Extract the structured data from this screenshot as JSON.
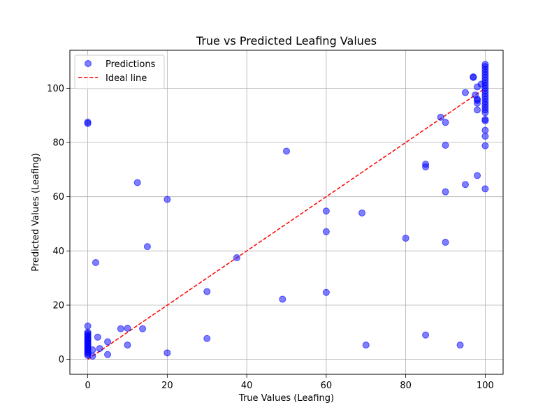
{
  "chart_data": {
    "type": "scatter",
    "title": "True vs Predicted Leafing Values",
    "xlabel": "True Values (Leafing)",
    "ylabel": "Predicted Values (Leafing)",
    "xlim": [
      -4.5,
      104.5
    ],
    "ylim": [
      -5.5,
      114
    ],
    "xticks": [
      0,
      20,
      40,
      60,
      80,
      100
    ],
    "yticks": [
      0,
      20,
      40,
      60,
      80,
      100
    ],
    "grid": true,
    "legend_position": "top-left",
    "series": [
      {
        "name": "Predictions",
        "color": "#0000ff",
        "points": [
          [
            0,
            87.5
          ],
          [
            0,
            87
          ],
          [
            0,
            12.3
          ],
          [
            0,
            10
          ],
          [
            0,
            9.5
          ],
          [
            0,
            9
          ],
          [
            0,
            8.5
          ],
          [
            0,
            8
          ],
          [
            0,
            7.5
          ],
          [
            0,
            7
          ],
          [
            0,
            6.5
          ],
          [
            0,
            6
          ],
          [
            0,
            5.5
          ],
          [
            0,
            5
          ],
          [
            0,
            4.5
          ],
          [
            0,
            4
          ],
          [
            0,
            3.5
          ],
          [
            0,
            3
          ],
          [
            0,
            2.5
          ],
          [
            0,
            2
          ],
          [
            0,
            1.5
          ],
          [
            1.2,
            3.5
          ],
          [
            1.2,
            1.2
          ],
          [
            2,
            35.7
          ],
          [
            2.5,
            8.2
          ],
          [
            3,
            4
          ],
          [
            5,
            6.5
          ],
          [
            5,
            1.8
          ],
          [
            8.3,
            11.3
          ],
          [
            10,
            11.5
          ],
          [
            10,
            5.3
          ],
          [
            12.5,
            65.2
          ],
          [
            13.8,
            11.3
          ],
          [
            15,
            41.6
          ],
          [
            20,
            59
          ],
          [
            20,
            2.4
          ],
          [
            30,
            25
          ],
          [
            30,
            7.7
          ],
          [
            37.5,
            37.5
          ],
          [
            49,
            22.2
          ],
          [
            50,
            76.8
          ],
          [
            60,
            54.7
          ],
          [
            60,
            47.1
          ],
          [
            60,
            24.7
          ],
          [
            69,
            54
          ],
          [
            70,
            5.3
          ],
          [
            80,
            44.7
          ],
          [
            85,
            72
          ],
          [
            85,
            71
          ],
          [
            85,
            9
          ],
          [
            88.8,
            89.3
          ],
          [
            90,
            87.4
          ],
          [
            90,
            79
          ],
          [
            90,
            61.8
          ],
          [
            90,
            43.2
          ],
          [
            93.7,
            5.3
          ],
          [
            95,
            98.4
          ],
          [
            95,
            64.5
          ],
          [
            97,
            104
          ],
          [
            97,
            104.2
          ],
          [
            97.5,
            97.5
          ],
          [
            98,
            100.5
          ],
          [
            98,
            96
          ],
          [
            98,
            95.5
          ],
          [
            98,
            94.5
          ],
          [
            98,
            92
          ],
          [
            98,
            67.8
          ],
          [
            99,
            101.5
          ],
          [
            100,
            108.8
          ],
          [
            100,
            108
          ],
          [
            100,
            107
          ],
          [
            100,
            106
          ],
          [
            100,
            105
          ],
          [
            100,
            104
          ],
          [
            100,
            103
          ],
          [
            100,
            102
          ],
          [
            100,
            101
          ],
          [
            100,
            100
          ],
          [
            100,
            99
          ],
          [
            100,
            98
          ],
          [
            100,
            97
          ],
          [
            100,
            96
          ],
          [
            100,
            95
          ],
          [
            100,
            94
          ],
          [
            100,
            93
          ],
          [
            100,
            92
          ],
          [
            100,
            91
          ],
          [
            100,
            88.5
          ],
          [
            100,
            88
          ],
          [
            100,
            84.5
          ],
          [
            100,
            82.3
          ],
          [
            100,
            78.8
          ],
          [
            100,
            62.9
          ]
        ]
      },
      {
        "name": "Ideal line",
        "color": "#ff0000",
        "style": "dashed",
        "points": [
          [
            0,
            0
          ],
          [
            100,
            100
          ]
        ]
      }
    ]
  }
}
